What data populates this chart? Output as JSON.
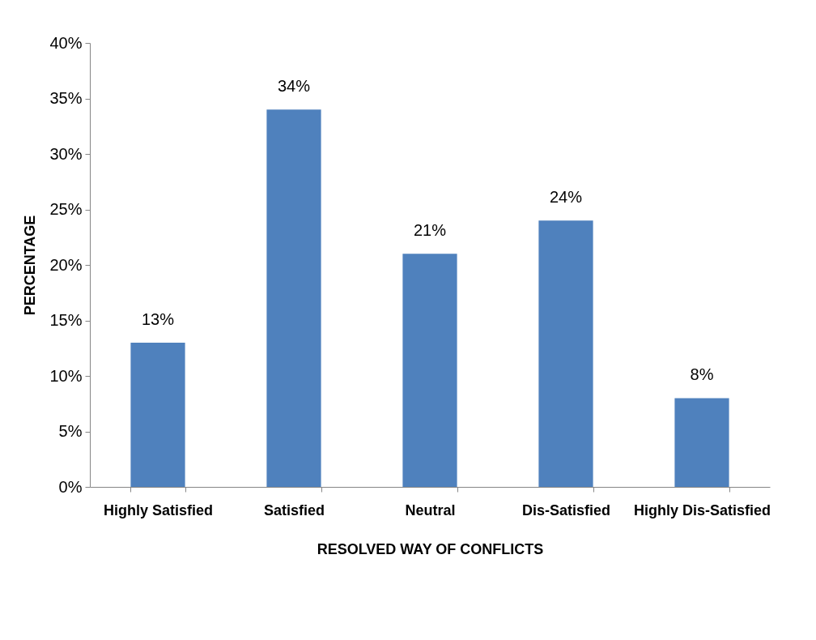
{
  "chart_data": {
    "type": "bar",
    "xlabel": "RESOLVED WAY OF CONFLICTS",
    "ylabel": "PERCENTAGE",
    "categories": [
      "Highly Satisfied",
      "Satisfied",
      "Neutral",
      "Dis-Satisfied",
      "Highly Dis-Satisfied"
    ],
    "values": [
      13,
      34,
      21,
      24,
      8
    ],
    "value_labels": [
      "13%",
      "34%",
      "21%",
      "24%",
      "8%"
    ],
    "color": "#4f81bd",
    "ylim": [
      0,
      40
    ],
    "yticks": [
      {
        "value": 0,
        "label": "0%"
      },
      {
        "value": 5,
        "label": "5%"
      },
      {
        "value": 10,
        "label": "10%"
      },
      {
        "value": 15,
        "label": "15%"
      },
      {
        "value": 20,
        "label": "20%"
      },
      {
        "value": 25,
        "label": "25%"
      },
      {
        "value": 30,
        "label": "30%"
      },
      {
        "value": 35,
        "label": "35%"
      },
      {
        "value": 40,
        "label": "40%"
      }
    ],
    "grid": false
  }
}
